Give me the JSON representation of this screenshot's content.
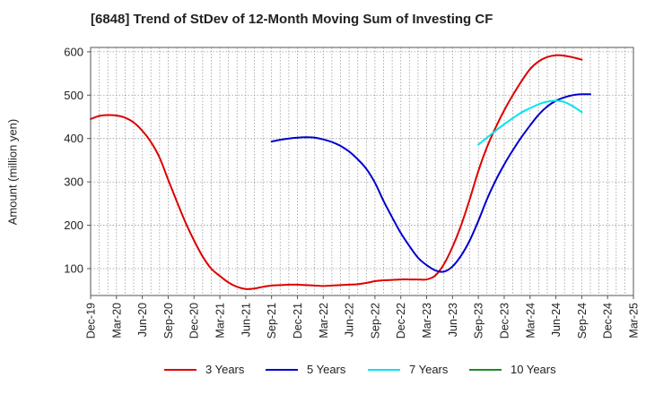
{
  "chart_data": {
    "type": "line",
    "title": "[6848]  Trend of StDev of 12-Month Moving Sum of Investing CF",
    "xlabel": "",
    "ylabel": "Amount (million yen)",
    "ylim": [
      38,
      610
    ],
    "yticks": [
      100,
      200,
      300,
      400,
      500,
      600
    ],
    "x_tick_labels": [
      "Dec-19",
      "Mar-20",
      "Jun-20",
      "Sep-20",
      "Dec-20",
      "Mar-21",
      "Jun-21",
      "Sep-21",
      "Dec-21",
      "Mar-22",
      "Jun-22",
      "Sep-22",
      "Dec-22",
      "Mar-23",
      "Jun-23",
      "Sep-23",
      "Dec-23",
      "Mar-24",
      "Jun-24",
      "Sep-24",
      "Dec-24",
      "Mar-25"
    ],
    "grid": true,
    "legend_position": "bottom",
    "series": [
      {
        "name": "3 Years",
        "color": "#dd0000",
        "points": [
          [
            "Dec-19",
            445
          ],
          [
            "Jan-20",
            452
          ],
          [
            "Feb-20",
            454
          ],
          [
            "Mar-20",
            453
          ],
          [
            "Apr-20",
            448
          ],
          [
            "May-20",
            437
          ],
          [
            "Jun-20",
            418
          ],
          [
            "Jul-20",
            392
          ],
          [
            "Aug-20",
            356
          ],
          [
            "Sep-20",
            305
          ],
          [
            "Oct-20",
            255
          ],
          [
            "Nov-20",
            207
          ],
          [
            "Dec-20",
            165
          ],
          [
            "Jan-21",
            128
          ],
          [
            "Feb-21",
            100
          ],
          [
            "Mar-21",
            83
          ],
          [
            "Apr-21",
            68
          ],
          [
            "May-21",
            58
          ],
          [
            "Jun-21",
            53
          ],
          [
            "Jul-21",
            54
          ],
          [
            "Aug-21",
            58
          ],
          [
            "Sep-21",
            61
          ],
          [
            "Oct-21",
            62
          ],
          [
            "Nov-21",
            63
          ],
          [
            "Dec-21",
            63
          ],
          [
            "Jan-22",
            62
          ],
          [
            "Feb-22",
            61
          ],
          [
            "Mar-22",
            60
          ],
          [
            "Apr-22",
            61
          ],
          [
            "May-22",
            62
          ],
          [
            "Jun-22",
            63
          ],
          [
            "Jul-22",
            64
          ],
          [
            "Aug-22",
            67
          ],
          [
            "Sep-22",
            71
          ],
          [
            "Oct-22",
            73
          ],
          [
            "Nov-22",
            74
          ],
          [
            "Dec-22",
            75
          ],
          [
            "Jan-23",
            75
          ],
          [
            "Feb-23",
            75
          ],
          [
            "Mar-23",
            75
          ],
          [
            "Apr-23",
            84
          ],
          [
            "May-23",
            110
          ],
          [
            "Jun-23",
            150
          ],
          [
            "Jul-23",
            200
          ],
          [
            "Aug-23",
            260
          ],
          [
            "Sep-23",
            325
          ],
          [
            "Oct-23",
            380
          ],
          [
            "Nov-23",
            425
          ],
          [
            "Dec-23",
            465
          ],
          [
            "Jan-24",
            500
          ],
          [
            "Feb-24",
            532
          ],
          [
            "Mar-24",
            560
          ],
          [
            "Apr-24",
            578
          ],
          [
            "May-24",
            588
          ],
          [
            "Jun-24",
            592
          ],
          [
            "Jul-24",
            591
          ],
          [
            "Aug-24",
            587
          ],
          [
            "Sep-24",
            582
          ]
        ]
      },
      {
        "name": "5 Years",
        "color": "#0000cc",
        "points": [
          [
            "Sep-21",
            393
          ],
          [
            "Oct-21",
            397
          ],
          [
            "Nov-21",
            400
          ],
          [
            "Dec-21",
            402
          ],
          [
            "Jan-22",
            403
          ],
          [
            "Feb-22",
            402
          ],
          [
            "Mar-22",
            398
          ],
          [
            "Apr-22",
            392
          ],
          [
            "May-22",
            383
          ],
          [
            "Jun-22",
            370
          ],
          [
            "Jul-22",
            352
          ],
          [
            "Aug-22",
            330
          ],
          [
            "Sep-22",
            298
          ],
          [
            "Oct-22",
            256
          ],
          [
            "Nov-22",
            218
          ],
          [
            "Dec-22",
            182
          ],
          [
            "Jan-23",
            152
          ],
          [
            "Feb-23",
            125
          ],
          [
            "Mar-23",
            108
          ],
          [
            "Apr-23",
            96
          ],
          [
            "May-23",
            93
          ],
          [
            "Jun-23",
            105
          ],
          [
            "Jul-23",
            130
          ],
          [
            "Aug-23",
            165
          ],
          [
            "Sep-23",
            210
          ],
          [
            "Oct-23",
            260
          ],
          [
            "Nov-23",
            303
          ],
          [
            "Dec-23",
            340
          ],
          [
            "Jan-24",
            373
          ],
          [
            "Feb-24",
            403
          ],
          [
            "Mar-24",
            430
          ],
          [
            "Apr-24",
            455
          ],
          [
            "May-24",
            474
          ],
          [
            "Jun-24",
            487
          ],
          [
            "Jul-24",
            495
          ],
          [
            "Aug-24",
            500
          ],
          [
            "Sep-24",
            502
          ],
          [
            "Oct-24",
            502
          ]
        ]
      },
      {
        "name": "7 Years",
        "color": "#00e5ee",
        "points": [
          [
            "Sep-23",
            386
          ],
          [
            "Oct-23",
            402
          ],
          [
            "Nov-23",
            418
          ],
          [
            "Dec-23",
            433
          ],
          [
            "Jan-24",
            447
          ],
          [
            "Feb-24",
            460
          ],
          [
            "Mar-24",
            470
          ],
          [
            "Apr-24",
            479
          ],
          [
            "May-24",
            485
          ],
          [
            "Jun-24",
            487
          ],
          [
            "Jul-24",
            484
          ],
          [
            "Aug-24",
            474
          ],
          [
            "Sep-24",
            461
          ]
        ]
      },
      {
        "name": "10 Years",
        "color": "#228822",
        "points": []
      }
    ]
  }
}
